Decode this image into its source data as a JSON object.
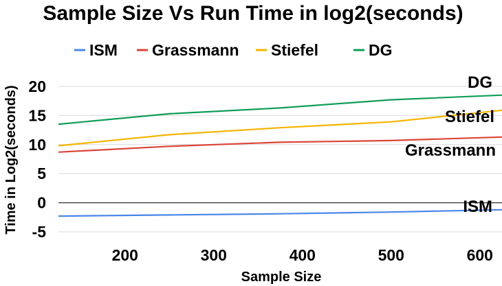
{
  "chart_data": {
    "type": "line",
    "title": "Sample Size Vs Run Time in log2(seconds)",
    "xlabel": "Sample Size",
    "ylabel": "Time in Log2(seconds)",
    "xlim": [
      125,
      625
    ],
    "ylim": [
      -5,
      20
    ],
    "x_ticks": [
      "200",
      "300",
      "400",
      "500",
      "600"
    ],
    "y_ticks": [
      "20",
      "15",
      "10",
      "5",
      "0",
      "-5"
    ],
    "grid": "horizontal",
    "legend_position": "top",
    "x": [
      125,
      250,
      375,
      500,
      625
    ],
    "series": [
      {
        "name": "ISM",
        "color": "#4a86e8",
        "values": [
          -2.3,
          -2.1,
          -1.9,
          -1.6,
          -1.2
        ]
      },
      {
        "name": "Grassmann",
        "color": "#db4437",
        "values": [
          8.7,
          9.7,
          10.4,
          10.7,
          11.3
        ]
      },
      {
        "name": "Stiefel",
        "color": "#f4b400",
        "values": [
          9.8,
          11.7,
          12.9,
          13.9,
          15.9
        ]
      },
      {
        "name": "DG",
        "color": "#0f9d58",
        "values": [
          13.5,
          15.3,
          16.3,
          17.7,
          18.5
        ]
      }
    ],
    "annotations": [
      "DG",
      "Stiefel",
      "Grassmann",
      "ISM"
    ]
  }
}
